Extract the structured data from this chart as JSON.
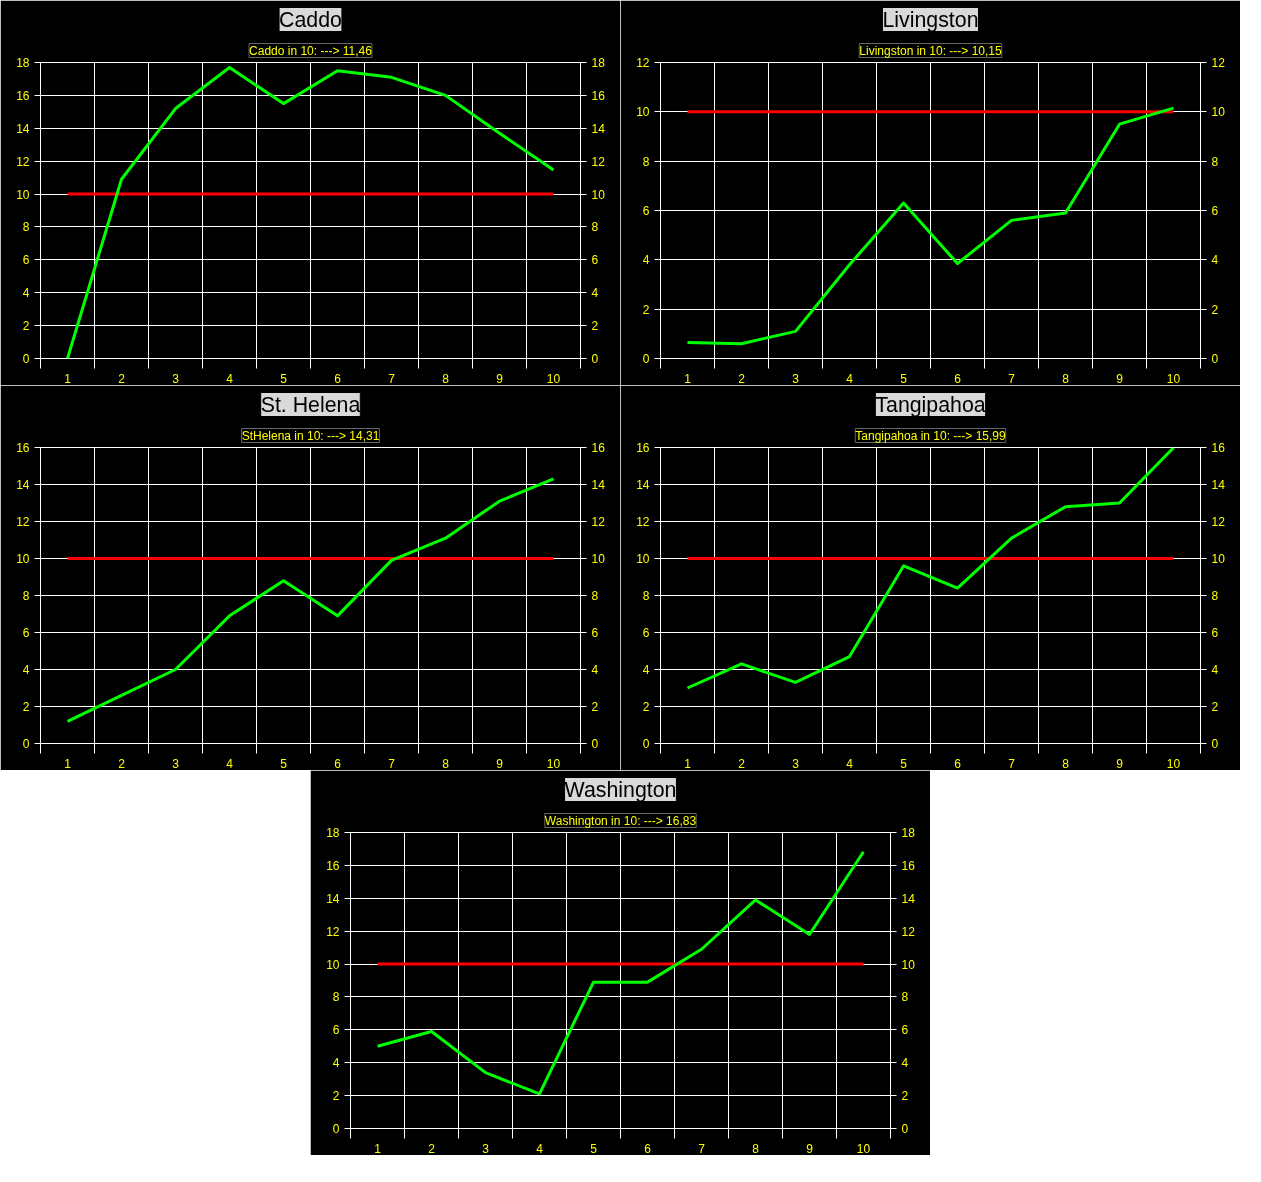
{
  "chart_data": [
    {
      "type": "line",
      "title": "Caddo",
      "subtitle": "Caddo in 10: ---> 11,46",
      "categories": [
        "1",
        "2",
        "3",
        "4",
        "5",
        "6",
        "7",
        "8",
        "9",
        "10"
      ],
      "series": [
        {
          "color": "#00ff00",
          "values": [
            0,
            10.9,
            15.2,
            17.7,
            15.5,
            17.5,
            17.1,
            16.0,
            13.7,
            11.46
          ]
        }
      ],
      "ylim": [
        0,
        18
      ],
      "yticks": [
        0,
        2,
        4,
        6,
        8,
        10,
        12,
        14,
        16,
        18
      ],
      "y2lim": [
        0,
        18
      ],
      "y2ticks": [
        0,
        2,
        4,
        6,
        8,
        10,
        12,
        14,
        16,
        18
      ],
      "grid": true,
      "ref_lines": [
        {
          "axis": "y",
          "value": 10,
          "color": "#ff0000"
        }
      ]
    },
    {
      "type": "line",
      "title": "Livingston",
      "subtitle": "Livingston in 10: ---> 10,15",
      "categories": [
        "1",
        "2",
        "3",
        "4",
        "5",
        "6",
        "7",
        "8",
        "9",
        "10"
      ],
      "series": [
        {
          "color": "#00ff00",
          "values": [
            0.65,
            0.6,
            1.1,
            3.8,
            6.3,
            3.85,
            5.6,
            5.9,
            9.5,
            10.15
          ]
        }
      ],
      "ylim": [
        0,
        12
      ],
      "yticks": [
        0,
        2,
        4,
        6,
        8,
        10,
        12
      ],
      "y2lim": [
        0,
        12
      ],
      "y2ticks": [
        0,
        2,
        4,
        6,
        8,
        10,
        12
      ],
      "grid": true,
      "ref_lines": [
        {
          "axis": "y",
          "value": 10,
          "color": "#ff0000"
        }
      ]
    },
    {
      "type": "line",
      "title": "St. Helena",
      "subtitle": "StHelena in 10: ---> 14,31",
      "categories": [
        "1",
        "2",
        "3",
        "4",
        "5",
        "6",
        "7",
        "8",
        "9",
        "10"
      ],
      "series": [
        {
          "color": "#00ff00",
          "values": [
            1.2,
            2.6,
            4.0,
            6.9,
            8.8,
            6.9,
            9.9,
            11.1,
            13.1,
            14.31
          ]
        }
      ],
      "ylim": [
        0,
        16
      ],
      "yticks": [
        0,
        2,
        4,
        6,
        8,
        10,
        12,
        14,
        16
      ],
      "y2lim": [
        0,
        16
      ],
      "y2ticks": [
        0,
        2,
        4,
        6,
        8,
        10,
        12,
        14,
        16
      ],
      "grid": true,
      "ref_lines": [
        {
          "axis": "y",
          "value": 10,
          "color": "#ff0000"
        }
      ]
    },
    {
      "type": "line",
      "title": "Tangipahoa",
      "subtitle": "Tangipahoa in 10: ---> 15,99",
      "categories": [
        "1",
        "2",
        "3",
        "4",
        "5",
        "6",
        "7",
        "8",
        "9",
        "10"
      ],
      "series": [
        {
          "color": "#00ff00",
          "values": [
            3.0,
            4.3,
            3.3,
            4.7,
            9.6,
            8.4,
            11.1,
            12.8,
            13.0,
            15.99
          ]
        }
      ],
      "ylim": [
        0,
        16
      ],
      "yticks": [
        0,
        2,
        4,
        6,
        8,
        10,
        12,
        14,
        16
      ],
      "y2lim": [
        0,
        16
      ],
      "y2ticks": [
        0,
        2,
        4,
        6,
        8,
        10,
        12,
        14,
        16
      ],
      "grid": true,
      "ref_lines": [
        {
          "axis": "y",
          "value": 10,
          "color": "#ff0000"
        }
      ]
    },
    {
      "type": "line",
      "title": "Washington",
      "subtitle": "Washington in 10: ---> 16,83",
      "categories": [
        "1",
        "2",
        "3",
        "4",
        "5",
        "6",
        "7",
        "8",
        "9",
        "10"
      ],
      "series": [
        {
          "color": "#00ff00",
          "values": [
            5.0,
            5.9,
            3.4,
            2.1,
            8.9,
            8.9,
            10.9,
            13.9,
            11.8,
            16.83
          ]
        }
      ],
      "ylim": [
        0,
        18
      ],
      "yticks": [
        0,
        2,
        4,
        6,
        8,
        10,
        12,
        14,
        16,
        18
      ],
      "y2lim": [
        0,
        18
      ],
      "y2ticks": [
        0,
        2,
        4,
        6,
        8,
        10,
        12,
        14,
        16,
        18
      ],
      "grid": true,
      "ref_lines": [
        {
          "axis": "y",
          "value": 10,
          "color": "#ff0000"
        }
      ]
    }
  ]
}
